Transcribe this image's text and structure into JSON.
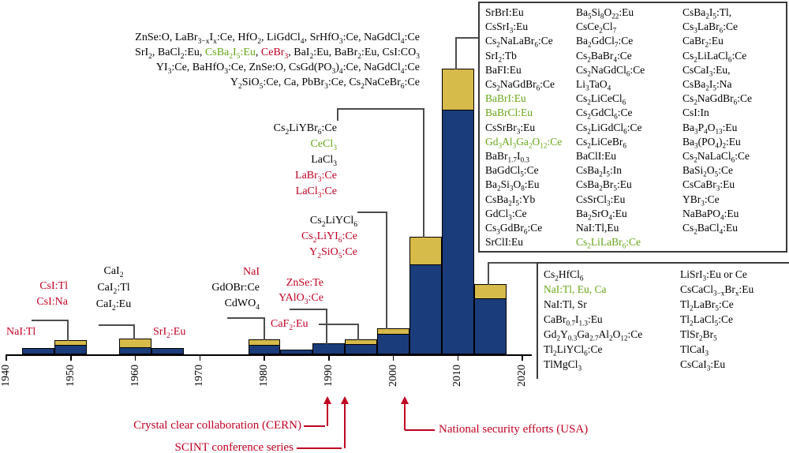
{
  "chart_data": {
    "type": "bar",
    "stacked": true,
    "title": "",
    "xlabel": "",
    "ylabel": "",
    "x_axis": {
      "ticks": [
        "1940",
        "1950",
        "1960",
        "1970",
        "1980",
        "1990",
        "2000",
        "2010",
        "2020"
      ],
      "tick_label_rotation_deg": -90
    },
    "y_axis": "none shown in figure; bar heights are relative (px of original render)",
    "legend": "none shown",
    "series_colors": {
      "main_lower_segment": "#1b3c7a",
      "top_segment": "#d6ba4a"
    },
    "bins": [
      {
        "center_year": 1945,
        "total_rel": 8,
        "gold_rel": 0
      },
      {
        "center_year": 1950,
        "total_rel": 18,
        "gold_rel": 6
      },
      {
        "center_year": 1960,
        "total_rel": 20,
        "gold_rel": 11
      },
      {
        "center_year": 1965,
        "total_rel": 8,
        "gold_rel": 0
      },
      {
        "center_year": 1980,
        "total_rel": 19,
        "gold_rel": 7
      },
      {
        "center_year": 1985,
        "total_rel": 6,
        "gold_rel": 0
      },
      {
        "center_year": 1990,
        "total_rel": 14,
        "gold_rel": 0
      },
      {
        "center_year": 1995,
        "total_rel": 19,
        "gold_rel": 6
      },
      {
        "center_year": 2000,
        "total_rel": 33,
        "gold_rel": 7
      },
      {
        "center_year": 2005,
        "total_rel": 149,
        "gold_rel": 35
      },
      {
        "center_year": 2010,
        "total_rel": 362,
        "gold_rel": 52
      },
      {
        "center_year": 2015,
        "total_rel": 89,
        "gold_rel": 18
      }
    ]
  },
  "labels": {
    "para_2005": {
      "lines": [
        [
          {
            "t": "ZnSe:O, LaBr~3−x~I~x~:Ce, HfO~2~, LiGdCl~4~, SrHfO~3~:Ce, NaGdCl~4~:Ce",
            "c": "k"
          }
        ],
        [
          {
            "t": "SrI~2~, BaCl~2~:Eu, ",
            "c": "k"
          },
          {
            "t": "CsBa~2~I~5~:Eu",
            "c": "g"
          },
          {
            "t": ", ",
            "c": "k"
          },
          {
            "t": "CeBr~3~",
            "c": "r"
          },
          {
            "t": ", BaI~2~:Eu, BaBr~2~:Eu, CsI:CO~3~",
            "c": "k"
          }
        ],
        [
          {
            "t": "YI~3~:Ce, BaHfO~3~:Ce, ZnSe:O, CsGd(PO~3~)~4~:Ce, NaGdCl~4~:Ce",
            "c": "k"
          }
        ],
        [
          {
            "t": "Y~2~SiO~5~:Ce, Ca, PbBr~3~:Ce, Cs~2~NaCeBr~6~:Ce",
            "c": "k"
          }
        ]
      ]
    },
    "nai_1945": [
      {
        "t": "NaI:Tl",
        "c": "r"
      }
    ],
    "csi_1950": [
      {
        "t": "CsI:Tl",
        "c": "r"
      },
      {
        "t": "CsI:Na",
        "c": "r"
      }
    ],
    "cai_1960": [
      "CaI~2~",
      "CaI~2~:Tl",
      "CaI~2~:Eu"
    ],
    "sri_1965": [
      {
        "t": "SrI~2~:Eu",
        "c": "r"
      }
    ],
    "nai_1980": [
      {
        "t": "NaI",
        "c": "r"
      },
      "GdOBr:Ce",
      "CdWO~4~"
    ],
    "znse_1990": [
      {
        "t": "ZnSe:Te",
        "c": "r"
      },
      {
        "t": "YAlO~3~:Ce",
        "c": "r"
      }
    ],
    "caf2_1995": [
      {
        "t": "CaF~2~:Eu",
        "c": "r"
      }
    ],
    "clyc_2000": [
      "Cs~2~LiYCl~6~",
      {
        "t": "Cs~2~LiYI~6~:Ce",
        "c": "r"
      },
      {
        "t": "Y~2~SiO~5~:Ce",
        "c": "r"
      }
    ],
    "clyb_2005": [
      "Cs~2~LiYBr~6~:Ce",
      {
        "t": "CeCl~3~",
        "c": "g"
      },
      "LaCl~3~",
      {
        "t": "LaBr~3~:Ce",
        "c": "r"
      },
      {
        "t": "LaCl~3~:Ce",
        "c": "r"
      }
    ]
  },
  "box_2010": {
    "columns": [
      [
        "SrBrI:Eu",
        "CsSrI~3~:Eu",
        "Cs~2~NaLaBr~6~:Ce",
        "SrI~2~:Tb",
        "BaFI:Eu",
        "Cs~2~NaGdBr~6~:Ce",
        {
          "t": "BaBrI:Eu",
          "c": "g"
        },
        {
          "t": "BaBrCl:Eu",
          "c": "g"
        },
        "CsSrBr~3~:Eu",
        {
          "t": "Gd~3~Al~3~Ga~2~O~12~:Ce",
          "c": "g"
        },
        "BaBr~1.7~I~0.3~",
        "BaGdCl~5~:Ce",
        "Ba~2~Si~3~O~8~:Eu",
        "CsBa~2~I~5~:Yb",
        "GdCl~3~:Ce",
        "Cs~3~GdBr~6~:Ce",
        "SrClI:Eu"
      ],
      [
        "Ba~5~Si~8~O~22~:Eu",
        "CsCe~2~Cl~7~",
        "Ba~2~GdCl~7~:Ce",
        "Cs~2~BaBr~4~:Ce",
        "Cs~2~NaGdCl~6~:Ce",
        "Li~3~TaO~4~",
        "Cs~2~LiCeCl~6~",
        "Cs~2~GdCl~6~:Ce",
        "Cs~2~LiGdCl~6~:Ce",
        "Cs~2~LiCeBr~6~",
        "BaClI:Eu",
        "CsBa~2~I~5~:In",
        "CsBa~2~Br~5~:Eu",
        "CsSrCl~3~:Eu",
        "Ba~2~SrO~4~:Eu",
        "NaI:Tl,Eu",
        {
          "t": "Cs~2~LiLaBr~6~:Ce",
          "c": "g"
        }
      ],
      [
        "CsBa~2~I~5~:Tl,",
        "Cs~3~LaBr~6~:Ce",
        "CaBr~2~:Eu",
        "Cs~2~LiLaCl~6~:Ce",
        "CsCaI~3~:Eu,",
        "CsBa~2~I~5~:Na",
        "Cs~2~NaGdBr~6~:Ce",
        "CsI:In",
        "Ba~3~P~4~O~13~:Eu",
        "Ba~3~(PO~4~)~2~:Eu",
        "Cs~2~NaLaCl~6~:Ce",
        "BaSi~2~O~5~:Ce",
        "CsCaBr~3~:Eu",
        "YBr~3~:Ce",
        "NaBaPO~4~:Eu",
        "Cs~2~BaCl~4~:Eu"
      ]
    ]
  },
  "box_2015": {
    "columns": [
      [
        "Cs~2~HfCl~6~",
        {
          "t": "NaI:Tl, Eu, Ca",
          "c": "g"
        },
        "NaI:Tl, Sr",
        "CaBr~0.7~I~1.3~:Eu",
        "Gd~2~Y~0.3~Ga~2.7~Al~2~O~12~:Ce",
        "Tl~2~LiYCl~6~:Ce",
        "TlMgCl~3~"
      ],
      [
        "LiSrI~3~:Eu or Ce",
        "CsCaCl~3−x~Br~x~:Eu",
        "Tl~2~LaBr~5~:Ce",
        "Tl~2~LaCl~5~:Ce",
        "TlSr~2~Br~5~",
        "TlCaI~3~",
        "CsCaI~3~:Eu"
      ]
    ]
  },
  "annotations": {
    "cern": "Crystal clear collaboration (CERN)",
    "scint": "SCINT conference series",
    "natsec": "National security efforts (USA)"
  },
  "colors": {
    "bar_main": "#1b3c7a",
    "bar_top": "#d6ba4a",
    "material_red": "#c00022",
    "material_green": "#66a617",
    "annotation_red": "#c00022",
    "leader_gray": "#4d4d4d"
  }
}
